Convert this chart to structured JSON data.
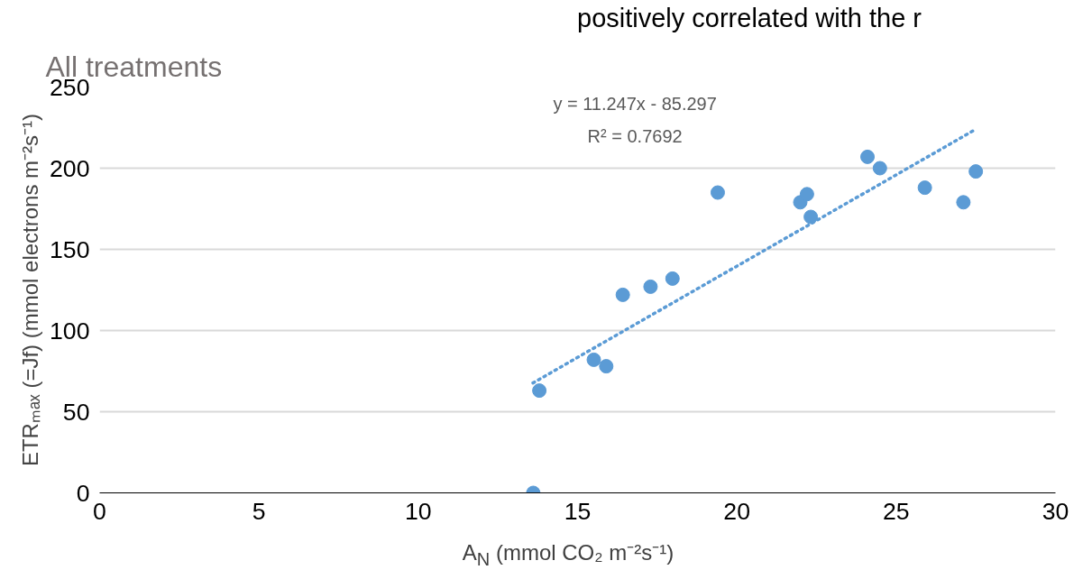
{
  "chart_data": {
    "type": "scatter",
    "title": "All treatments",
    "xlabel": "A$_{N}$ (mmol CO₂ m⁻²s⁻¹)",
    "ylabel": "ETRₘₐₓ (=Jf) (mmol electrons m⁻²s⁻¹)",
    "annotations": [
      "positively correlated with the r",
      "y = 11.247x - 85.297",
      "R² = 0.7692"
    ],
    "series": [
      {
        "color": "#5b9bd5",
        "marker": "circle",
        "x": [
          13.61,
          13.8,
          15.51,
          15.9,
          16.42,
          17.29,
          17.98,
          19.4,
          21.99,
          22.2,
          22.32,
          24.1,
          24.49,
          25.9,
          27.11,
          27.5
        ],
        "values": [
          0,
          63,
          82,
          78,
          122,
          127,
          132,
          185,
          179,
          184,
          170,
          207,
          200,
          188,
          179,
          198
        ]
      },
      {
        "type": "line",
        "color": "#5b9bd5",
        "line_style": "dotted",
        "marker": "none",
        "x": [
          13.6,
          27.5
        ],
        "values": [
          67.7,
          224.0
        ]
      }
    ],
    "xlim": [
      0,
      30
    ],
    "xticks": [
      0,
      5,
      10,
      15,
      20,
      25,
      30
    ],
    "ylim": [
      0,
      250
    ],
    "yticks": [
      0,
      50,
      100,
      150,
      200,
      250
    ],
    "grid": "y"
  }
}
